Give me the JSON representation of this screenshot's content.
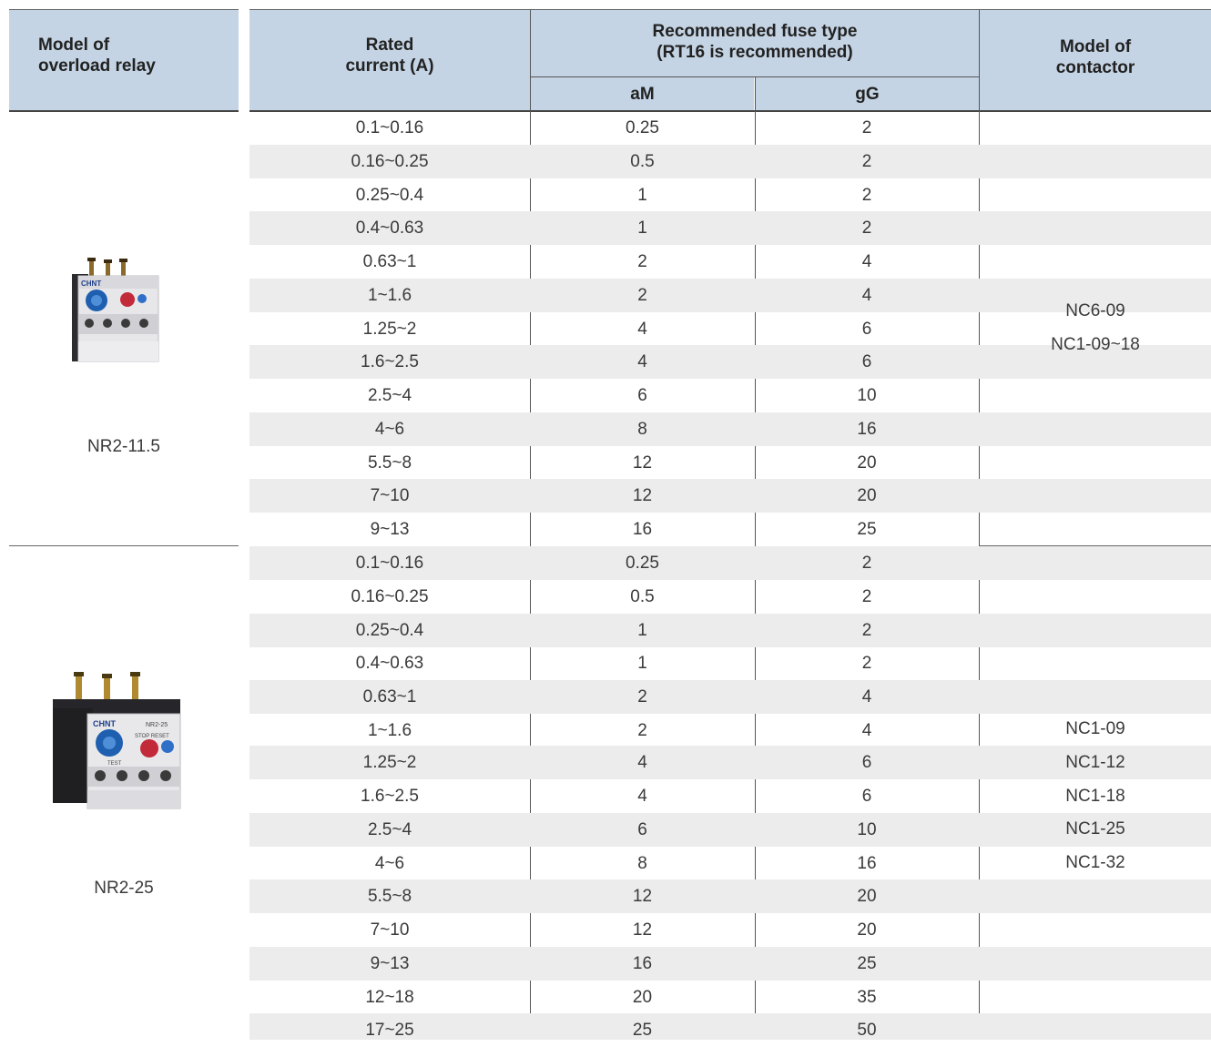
{
  "header": {
    "model_of_overload_relay": "Model of\noverload relay",
    "rated_current": "Rated\ncurrent (A)",
    "recommended_fuse_type": "Recommended fuse type\n(RT16 is recommended)",
    "am": "aM",
    "gg": "gG",
    "model_of_contactor": "Model of\ncontactor"
  },
  "groups": [
    {
      "model": "NR2-11.5",
      "contactors": [
        "NC6-09",
        "NC1-09~18"
      ],
      "rows": [
        [
          "0.1~0.16",
          "0.25",
          "2"
        ],
        [
          "0.16~0.25",
          "0.5",
          "2"
        ],
        [
          "0.25~0.4",
          "1",
          "2"
        ],
        [
          "0.4~0.63",
          "1",
          "2"
        ],
        [
          "0.63~1",
          "2",
          "4"
        ],
        [
          "1~1.6",
          "2",
          "4"
        ],
        [
          "1.25~2",
          "4",
          "6"
        ],
        [
          "1.6~2.5",
          "4",
          "6"
        ],
        [
          "2.5~4",
          "6",
          "10"
        ],
        [
          "4~6",
          "8",
          "16"
        ],
        [
          "5.5~8",
          "12",
          "20"
        ],
        [
          "7~10",
          "12",
          "20"
        ],
        [
          "9~13",
          "16",
          "25"
        ]
      ]
    },
    {
      "model": "NR2-25",
      "contactors": [
        "NC1-09",
        "NC1-12",
        "NC1-18",
        "NC1-25",
        "NC1-32"
      ],
      "rows": [
        [
          "0.1~0.16",
          "0.25",
          "2"
        ],
        [
          "0.16~0.25",
          "0.5",
          "2"
        ],
        [
          "0.25~0.4",
          "1",
          "2"
        ],
        [
          "0.4~0.63",
          "1",
          "2"
        ],
        [
          "0.63~1",
          "2",
          "4"
        ],
        [
          "1~1.6",
          "2",
          "4"
        ],
        [
          "1.25~2",
          "4",
          "6"
        ],
        [
          "1.6~2.5",
          "4",
          "6"
        ],
        [
          "2.5~4",
          "6",
          "10"
        ],
        [
          "4~6",
          "8",
          "16"
        ],
        [
          "5.5~8",
          "12",
          "20"
        ],
        [
          "7~10",
          "12",
          "20"
        ],
        [
          "9~13",
          "16",
          "25"
        ],
        [
          "12~18",
          "20",
          "35"
        ],
        [
          "17~25",
          "25",
          "50"
        ]
      ]
    }
  ],
  "images": {
    "relay_small": "CHINT NR2-11.5 thermal overload relay photo",
    "relay_large": "CHINT NR2-25 thermal overload relay photo"
  },
  "image_label_text": {
    "brand": "CHNT",
    "large_model_plate": "NR2-25",
    "stop_reset": "STOP RESET",
    "test": "TEST"
  },
  "colors": {
    "header_bg": "#c5d4e4",
    "row_shade": "#ececec",
    "rule": "#444444"
  }
}
